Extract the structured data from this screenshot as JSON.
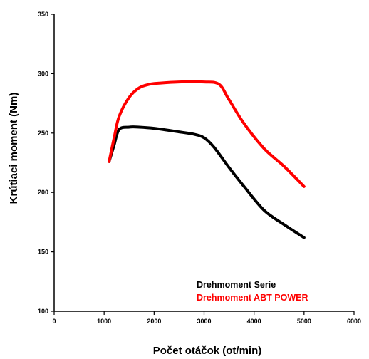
{
  "chart_data": {
    "type": "line",
    "title": "",
    "xlabel": "Počet otáčok (ot/min)",
    "ylabel": "Krútiaci moment (Nm)",
    "xlim": [
      0,
      6000
    ],
    "ylim": [
      100,
      350
    ],
    "xticks": [
      0,
      1000,
      2000,
      3000,
      4000,
      5000,
      6000
    ],
    "yticks": [
      100,
      150,
      200,
      250,
      300,
      350
    ],
    "grid": false,
    "legend_position": "bottom-right",
    "series": [
      {
        "name": "Drehmoment Serie",
        "color": "#000000",
        "x": [
          1100,
          1200,
          1300,
          1500,
          1700,
          2000,
          2500,
          2800,
          3000,
          3200,
          3500,
          3800,
          4200,
          4600,
          5000
        ],
        "y": [
          226,
          240,
          253,
          255,
          255,
          254,
          251,
          249,
          246,
          238,
          221,
          205,
          185,
          173,
          162
        ]
      },
      {
        "name": "Drehmoment ABT POWER",
        "color": "#ff0000",
        "x": [
          1100,
          1200,
          1300,
          1500,
          1700,
          1900,
          2100,
          2500,
          3000,
          3300,
          3500,
          3800,
          4200,
          4600,
          5000
        ],
        "y": [
          226,
          246,
          264,
          280,
          288,
          291,
          292,
          293,
          293,
          291,
          278,
          258,
          237,
          222,
          205
        ]
      }
    ]
  }
}
